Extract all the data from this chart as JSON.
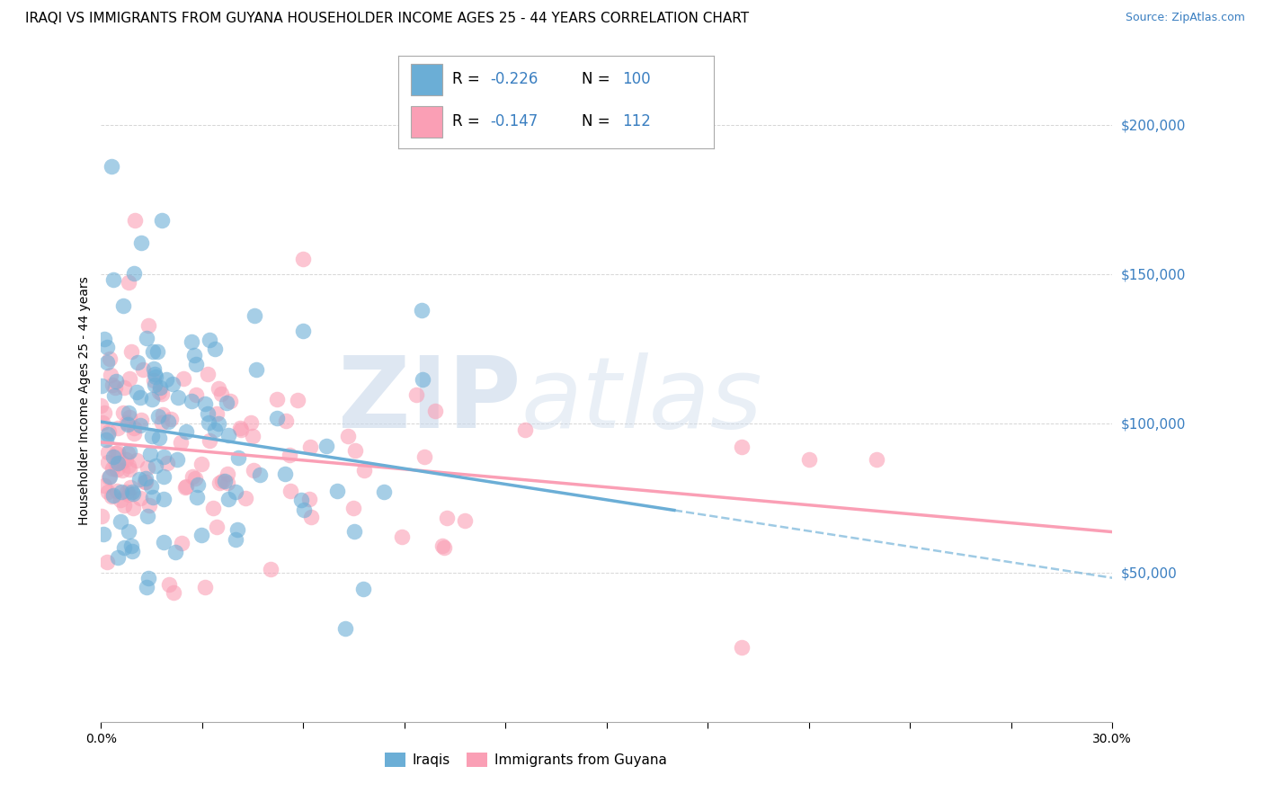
{
  "title": "IRAQI VS IMMIGRANTS FROM GUYANA HOUSEHOLDER INCOME AGES 25 - 44 YEARS CORRELATION CHART",
  "source": "Source: ZipAtlas.com",
  "ylabel": "Householder Income Ages 25 - 44 years",
  "watermark_text": "ZIP",
  "watermark_text2": "atlas",
  "iraqis_color": "#6baed6",
  "guyana_color": "#fa9fb5",
  "iraqis_R": -0.226,
  "iraqis_N": 100,
  "guyana_R": -0.147,
  "guyana_N": 112,
  "xmin": 0.0,
  "xmax": 0.3,
  "ymin": 0,
  "ymax": 215000,
  "title_fontsize": 11,
  "source_fontsize": 9,
  "axis_label_fontsize": 10,
  "tick_fontsize": 10,
  "legend_fontsize": 12,
  "iraqis_label": "Iraqis",
  "guyana_label": "Immigrants from Guyana",
  "background_color": "#ffffff",
  "grid_color": "#cccccc",
  "ytick_vals": [
    50000,
    100000,
    150000,
    200000
  ],
  "ytick_labels": [
    "$50,000",
    "$100,000",
    "$150,000",
    "$200,000"
  ],
  "xticks": [
    0.0,
    0.03,
    0.06,
    0.09,
    0.12,
    0.15,
    0.18,
    0.21,
    0.24,
    0.27,
    0.3
  ],
  "blue_color": "#3a7fc1",
  "legend_r1": "-0.226",
  "legend_n1": "100",
  "legend_r2": "-0.147",
  "legend_n2": "112"
}
